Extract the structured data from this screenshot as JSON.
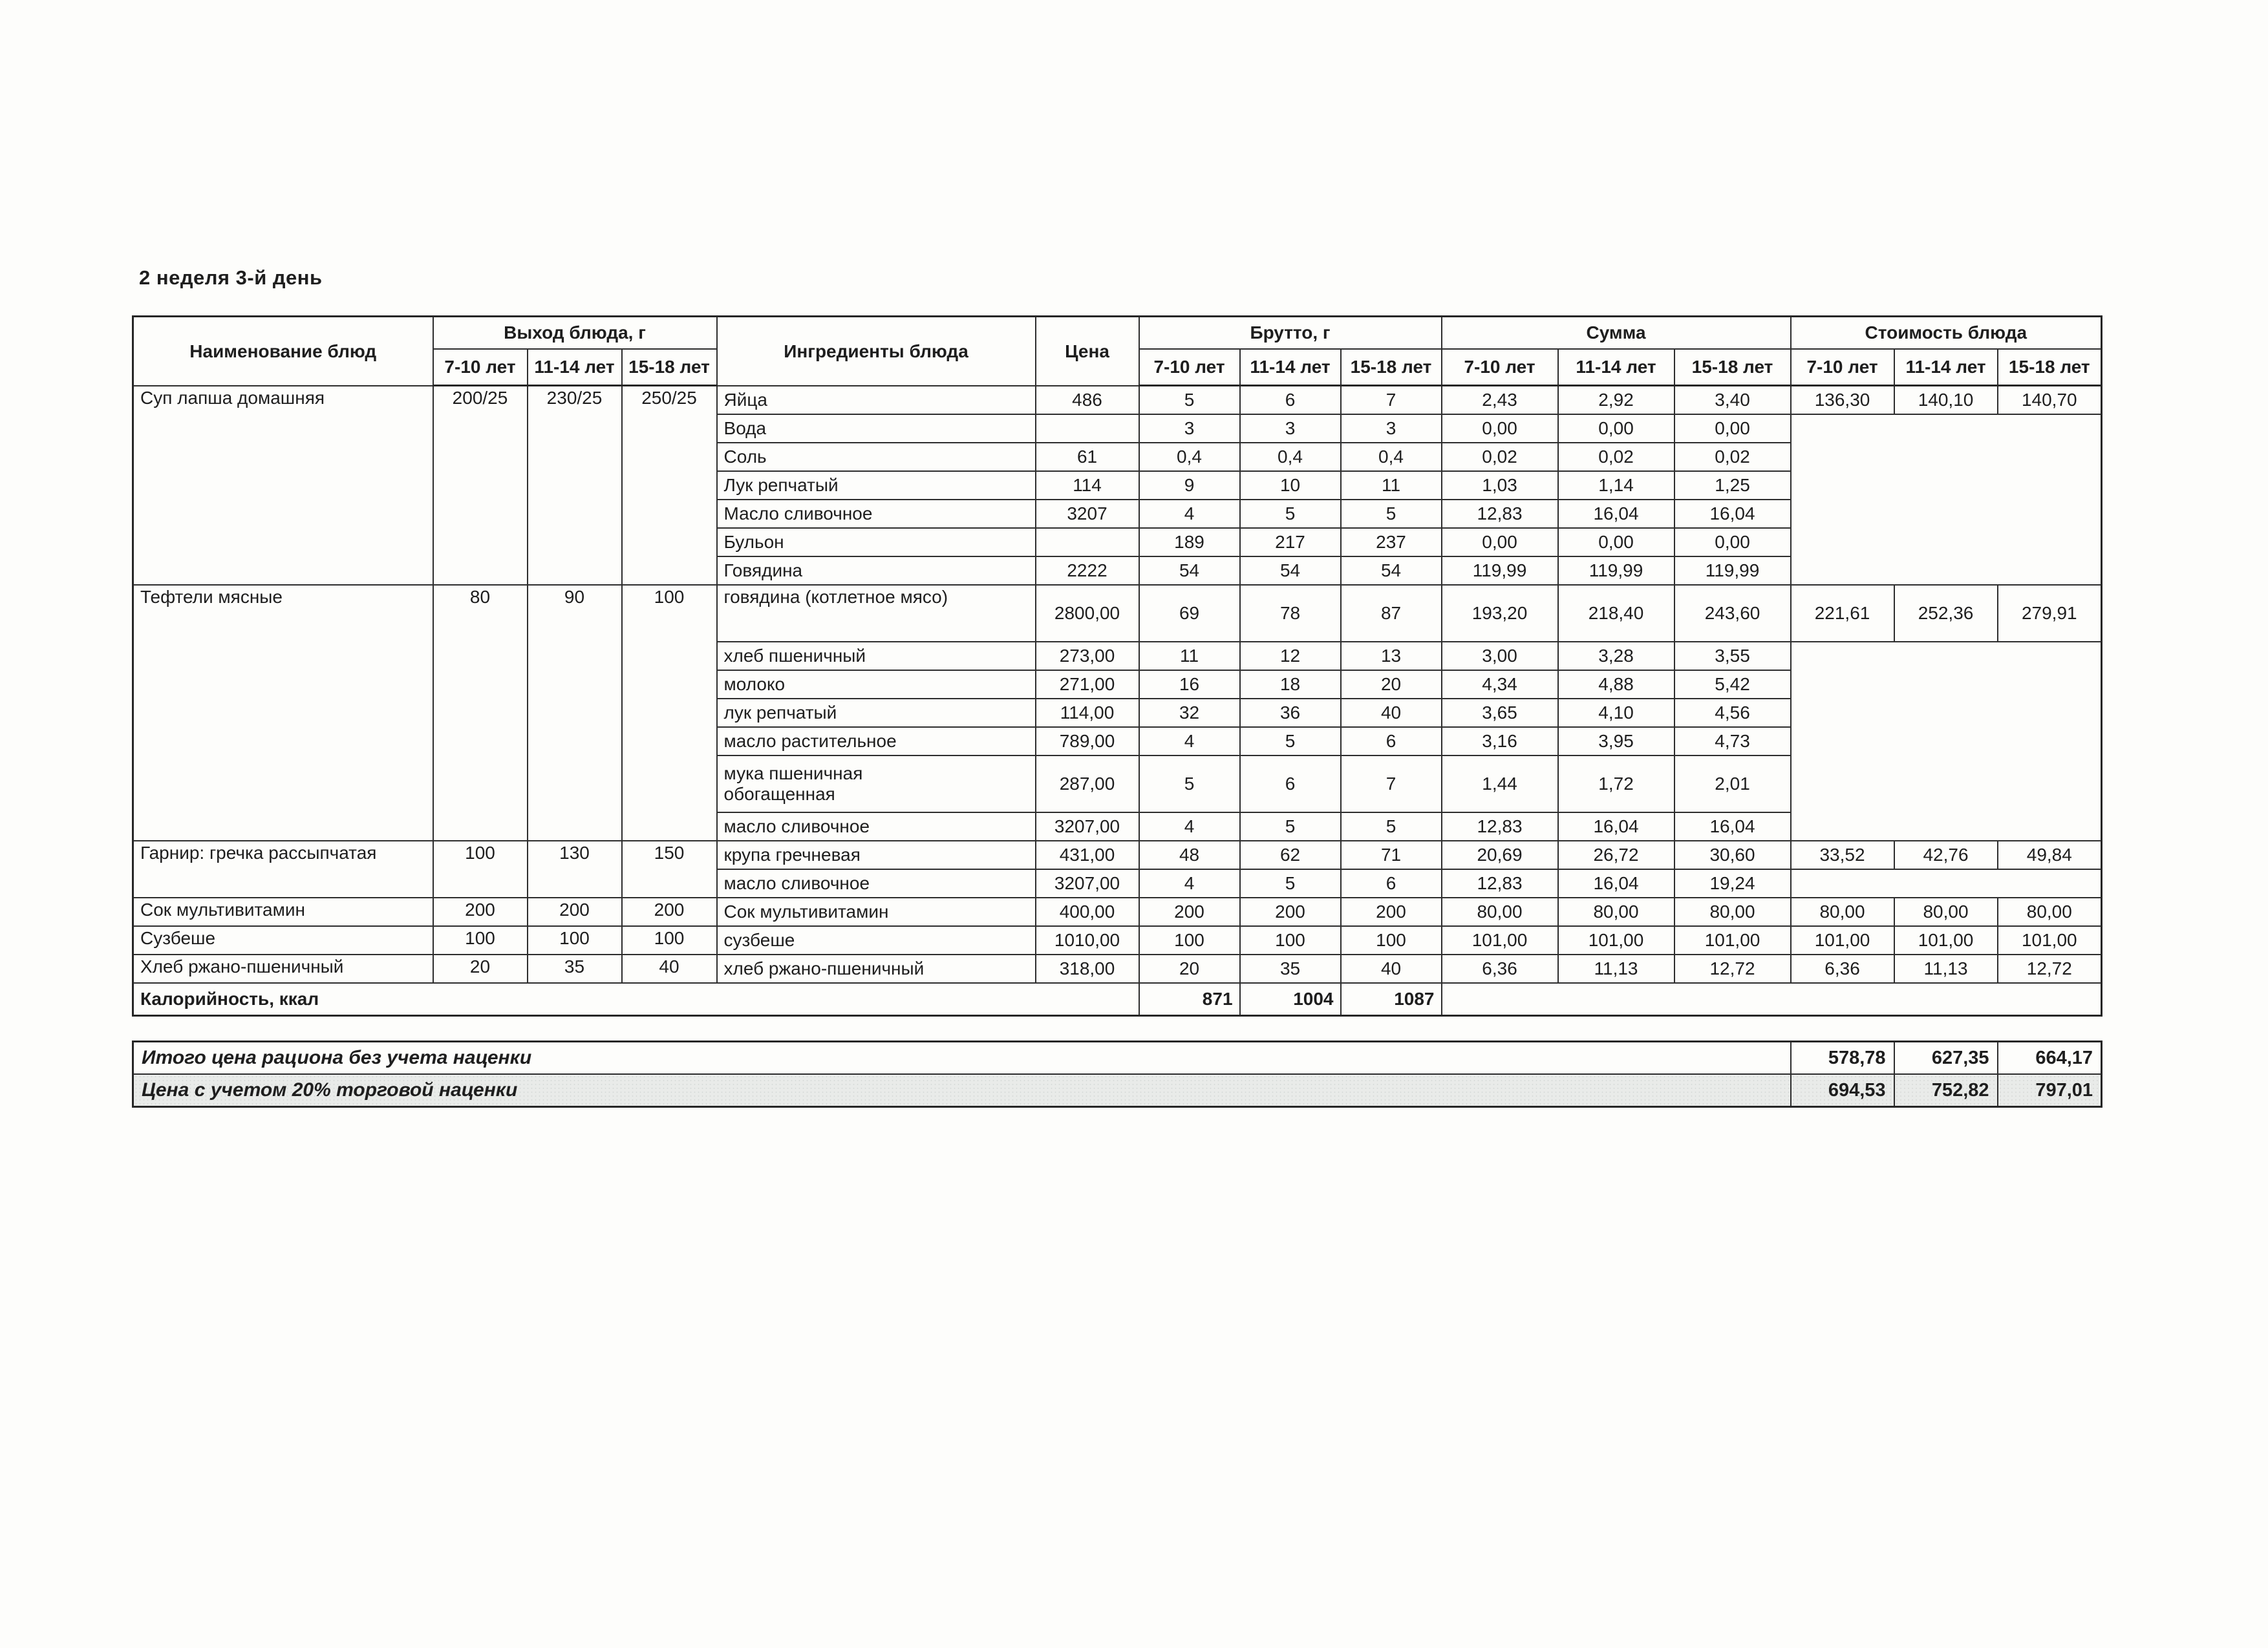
{
  "page": {
    "title": "2 неделя 3-й день"
  },
  "table": {
    "headers": {
      "dish": "Наименование блюд",
      "output": "Выход блюда, г",
      "ingredients": "Ингредиенты блюда",
      "price": "Цена",
      "gross": "Брутто, г",
      "sum": "Сумма",
      "cost": "Стоимость блюда",
      "age_groups": [
        "7-10 лет",
        "11-14 лет",
        "15-18 лет"
      ]
    },
    "groups": [
      {
        "dish": "Суп лапша домашняя",
        "output": [
          "200/25",
          "230/25",
          "250/25"
        ],
        "cost": [
          "136,30",
          "140,10",
          "140,70"
        ],
        "rows": [
          {
            "ingredient": "Яйца",
            "price": "486",
            "gross": [
              "5",
              "6",
              "7"
            ],
            "sum": [
              "2,43",
              "2,92",
              "3,40"
            ]
          },
          {
            "ingredient": "Вода",
            "price": "",
            "gross": [
              "3",
              "3",
              "3"
            ],
            "sum": [
              "0,00",
              "0,00",
              "0,00"
            ]
          },
          {
            "ingredient": "Соль",
            "price": "61",
            "gross": [
              "0,4",
              "0,4",
              "0,4"
            ],
            "sum": [
              "0,02",
              "0,02",
              "0,02"
            ]
          },
          {
            "ingredient": "Лук репчатый",
            "price": "114",
            "gross": [
              "9",
              "10",
              "11"
            ],
            "sum": [
              "1,03",
              "1,14",
              "1,25"
            ]
          },
          {
            "ingredient": "Масло сливочное",
            "price": "3207",
            "gross": [
              "4",
              "5",
              "5"
            ],
            "sum": [
              "12,83",
              "16,04",
              "16,04"
            ]
          },
          {
            "ingredient": "Бульон",
            "price": "",
            "gross": [
              "189",
              "217",
              "237"
            ],
            "sum": [
              "0,00",
              "0,00",
              "0,00"
            ]
          },
          {
            "ingredient": "Говядина",
            "price": "2222",
            "gross": [
              "54",
              "54",
              "54"
            ],
            "sum": [
              "119,99",
              "119,99",
              "119,99"
            ]
          }
        ]
      },
      {
        "dish": "Тефтели мясные",
        "output": [
          "80",
          "90",
          "100"
        ],
        "cost": [
          "221,61",
          "252,36",
          "279,91"
        ],
        "rows": [
          {
            "ingredient": "говядина (котлетное мясо)",
            "price": "2800,00",
            "gross": [
              "69",
              "78",
              "87"
            ],
            "sum": [
              "193,20",
              "218,40",
              "243,60"
            ],
            "tall": true,
            "top": true
          },
          {
            "ingredient": "хлеб пшеничный",
            "price": "273,00",
            "gross": [
              "11",
              "12",
              "13"
            ],
            "sum": [
              "3,00",
              "3,28",
              "3,55"
            ]
          },
          {
            "ingredient": "молоко",
            "price": "271,00",
            "gross": [
              "16",
              "18",
              "20"
            ],
            "sum": [
              "4,34",
              "4,88",
              "5,42"
            ]
          },
          {
            "ingredient": "лук репчатый",
            "price": "114,00",
            "gross": [
              "32",
              "36",
              "40"
            ],
            "sum": [
              "3,65",
              "4,10",
              "4,56"
            ]
          },
          {
            "ingredient": "масло растительное",
            "price": "789,00",
            "gross": [
              "4",
              "5",
              "6"
            ],
            "sum": [
              "3,16",
              "3,95",
              "4,73"
            ]
          },
          {
            "ingredient": "мука пшеничная\nобогащенная",
            "price": "287,00",
            "gross": [
              "5",
              "6",
              "7"
            ],
            "sum": [
              "1,44",
              "1,72",
              "2,01"
            ],
            "tall": true
          },
          {
            "ingredient": "масло сливочное",
            "price": "3207,00",
            "gross": [
              "4",
              "5",
              "5"
            ],
            "sum": [
              "12,83",
              "16,04",
              "16,04"
            ]
          }
        ]
      },
      {
        "dish": "Гарнир: гречка рассыпчатая",
        "output": [
          "100",
          "130",
          "150"
        ],
        "cost": [
          "33,52",
          "42,76",
          "49,84"
        ],
        "rows": [
          {
            "ingredient": "крупа гречневая",
            "price": "431,00",
            "gross": [
              "48",
              "62",
              "71"
            ],
            "sum": [
              "20,69",
              "26,72",
              "30,60"
            ]
          },
          {
            "ingredient": "масло сливочное",
            "price": "3207,00",
            "gross": [
              "4",
              "5",
              "6"
            ],
            "sum": [
              "12,83",
              "16,04",
              "19,24"
            ]
          }
        ]
      },
      {
        "dish": "Сок мультивитамин",
        "output": [
          "200",
          "200",
          "200"
        ],
        "cost": [
          "80,00",
          "80,00",
          "80,00"
        ],
        "rows": [
          {
            "ingredient": "Сок мультивитамин",
            "price": "400,00",
            "gross": [
              "200",
              "200",
              "200"
            ],
            "sum": [
              "80,00",
              "80,00",
              "80,00"
            ]
          }
        ]
      },
      {
        "dish": "Сузбеше",
        "output": [
          "100",
          "100",
          "100"
        ],
        "cost": [
          "101,00",
          "101,00",
          "101,00"
        ],
        "rows": [
          {
            "ingredient": "сузбеше",
            "price": "1010,00",
            "gross": [
              "100",
              "100",
              "100"
            ],
            "sum": [
              "101,00",
              "101,00",
              "101,00"
            ]
          }
        ]
      },
      {
        "dish": "Хлеб ржано-пшеничный",
        "output": [
          "20",
          "35",
          "40"
        ],
        "cost": [
          "6,36",
          "11,13",
          "12,72"
        ],
        "rows": [
          {
            "ingredient": "хлеб ржано-пшеничный",
            "price": "318,00",
            "gross": [
              "20",
              "35",
              "40"
            ],
            "sum": [
              "6,36",
              "11,13",
              "12,72"
            ]
          }
        ]
      }
    ],
    "calories": {
      "label": "Калорийность, ккал",
      "values": [
        "871",
        "1004",
        "1087"
      ]
    }
  },
  "totals": [
    {
      "label": "Итого цена рациона без учета наценки",
      "values": [
        "578,78",
        "627,35",
        "664,17"
      ]
    },
    {
      "label": "Цена с учетом 20% торговой наценки",
      "values": [
        "694,53",
        "752,82",
        "797,01"
      ]
    }
  ]
}
